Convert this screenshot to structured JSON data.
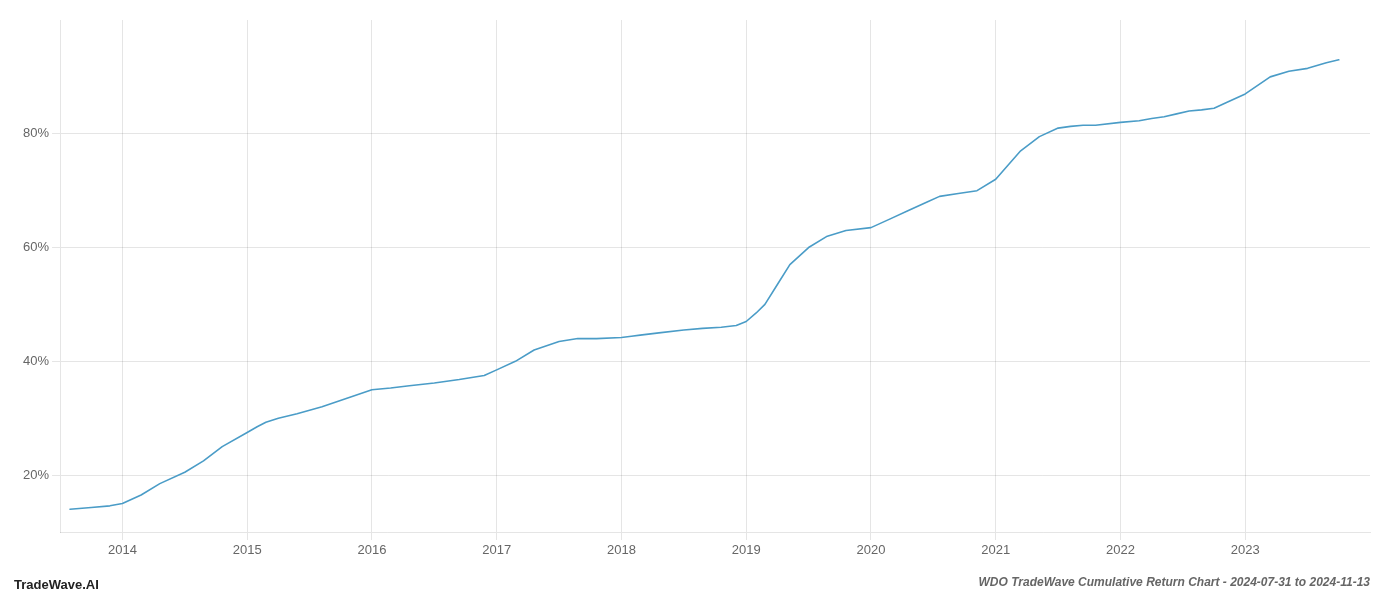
{
  "chart_data": {
    "type": "line",
    "title": "WDO TradeWave Cumulative Return Chart - 2024-07-31 to 2024-11-13",
    "annotations": [
      "TradeWave.AI"
    ],
    "x": [
      2013.58,
      2013.75,
      2013.9,
      2014.0,
      2014.15,
      2014.3,
      2014.5,
      2014.65,
      2014.8,
      2015.0,
      2015.08,
      2015.15,
      2015.25,
      2015.4,
      2015.6,
      2015.8,
      2016.0,
      2016.15,
      2016.3,
      2016.5,
      2016.7,
      2016.9,
      2017.0,
      2017.15,
      2017.3,
      2017.5,
      2017.65,
      2017.8,
      2018.0,
      2018.08,
      2018.15,
      2018.3,
      2018.5,
      2018.65,
      2018.8,
      2018.92,
      2019.0,
      2019.08,
      2019.15,
      2019.25,
      2019.35,
      2019.5,
      2019.65,
      2019.8,
      2020.0,
      2020.15,
      2020.3,
      2020.45,
      2020.55,
      2020.7,
      2020.85,
      2021.0,
      2021.1,
      2021.2,
      2021.35,
      2021.5,
      2021.6,
      2021.7,
      2021.8,
      2022.0,
      2022.15,
      2022.25,
      2022.35,
      2022.45,
      2022.55,
      2022.65,
      2022.75,
      2022.85,
      2023.0,
      2023.1,
      2023.2,
      2023.35,
      2023.5,
      2023.65,
      2023.75
    ],
    "values": [
      14.0,
      14.3,
      14.6,
      15.0,
      16.5,
      18.5,
      20.5,
      22.5,
      25.0,
      27.5,
      28.5,
      29.3,
      30.0,
      30.8,
      32.0,
      33.5,
      35.0,
      35.3,
      35.7,
      36.2,
      36.8,
      37.5,
      38.5,
      40.0,
      42.0,
      43.5,
      44.0,
      44.0,
      44.2,
      44.4,
      44.6,
      45.0,
      45.5,
      45.8,
      46.0,
      46.3,
      47.0,
      48.5,
      50.0,
      53.5,
      57.0,
      60.0,
      62.0,
      63.0,
      63.5,
      65.0,
      66.5,
      68.0,
      69.0,
      69.5,
      70.0,
      72.0,
      74.5,
      77.0,
      79.5,
      81.0,
      81.3,
      81.5,
      81.5,
      82.0,
      82.3,
      82.7,
      83.0,
      83.5,
      84.0,
      84.2,
      84.5,
      85.5,
      87.0,
      88.5,
      90.0,
      91.0,
      91.5,
      92.5,
      93.0
    ],
    "color": "#4a9cc7",
    "xlim": [
      2013.5,
      2024.0
    ],
    "xticks": [
      2014,
      2015,
      2016,
      2017,
      2018,
      2019,
      2020,
      2021,
      2022,
      2023
    ],
    "ylim": [
      10,
      100
    ],
    "yticks": [
      {
        "value": 20,
        "label": "20%"
      },
      {
        "value": 40,
        "label": "40%"
      },
      {
        "value": 60,
        "label": "60%"
      },
      {
        "value": 80,
        "label": "80%"
      }
    ],
    "grid": true
  }
}
